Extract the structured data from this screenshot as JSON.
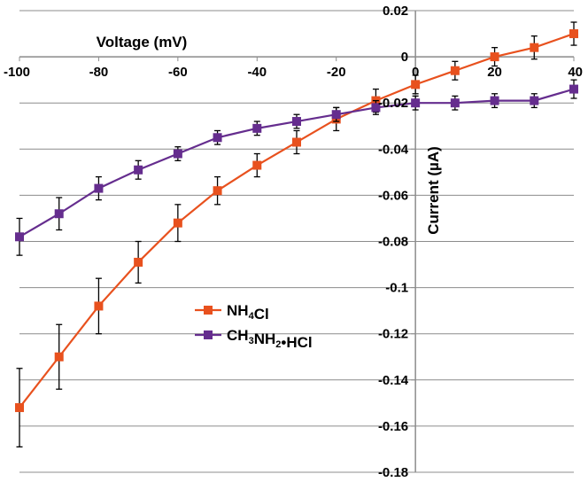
{
  "chart_data": {
    "type": "line",
    "xlabel": "Voltage (mV)",
    "ylabel": "Current (µA)",
    "xlim": [
      -100,
      40
    ],
    "ylim": [
      -0.18,
      0.02
    ],
    "x": [
      -100,
      -90,
      -80,
      -70,
      -60,
      -50,
      -40,
      -30,
      -20,
      -10,
      0,
      10,
      20,
      30,
      40
    ],
    "x_tick_labels": [
      "-100",
      "-80",
      "-60",
      "-40",
      "-20",
      "0",
      "20",
      "40"
    ],
    "x_tick_values": [
      -100,
      -80,
      -60,
      -40,
      -20,
      0,
      20,
      40
    ],
    "y_tick_labels": [
      "0.02",
      "0",
      "-0.02",
      "-0.04",
      "-0.06",
      "-0.08",
      "-0.1",
      "-0.12",
      "-0.14",
      "-0.16",
      "-0.18"
    ],
    "y_tick_values": [
      0.02,
      0,
      -0.02,
      -0.04,
      -0.06,
      -0.08,
      -0.1,
      -0.12,
      -0.14,
      -0.16,
      -0.18
    ],
    "grid": true,
    "legend_position": "center-left",
    "series": [
      {
        "name_parts": [
          [
            "NH",
            ""
          ],
          [
            "4",
            "sub"
          ],
          [
            "Cl",
            ""
          ]
        ],
        "color": "#e8511e",
        "values": [
          -0.152,
          -0.13,
          -0.108,
          -0.089,
          -0.072,
          -0.058,
          -0.047,
          -0.037,
          -0.027,
          -0.019,
          -0.012,
          -0.006,
          0.0,
          0.004,
          0.01
        ],
        "errors": [
          0.017,
          0.014,
          0.012,
          0.009,
          0.008,
          0.006,
          0.005,
          0.005,
          0.005,
          0.005,
          0.004,
          0.004,
          0.004,
          0.005,
          0.005
        ]
      },
      {
        "name_parts": [
          [
            "CH",
            ""
          ],
          [
            "3",
            "sub"
          ],
          [
            "NH",
            ""
          ],
          [
            "2",
            "sub"
          ],
          [
            "•HCl",
            ""
          ]
        ],
        "color": "#652d8e",
        "values": [
          -0.078,
          -0.068,
          -0.057,
          -0.049,
          -0.042,
          -0.035,
          -0.031,
          -0.028,
          -0.025,
          -0.022,
          -0.02,
          -0.02,
          -0.019,
          -0.019,
          -0.014
        ],
        "errors": [
          0.008,
          0.007,
          0.005,
          0.004,
          0.003,
          0.003,
          0.003,
          0.003,
          0.003,
          0.003,
          0.003,
          0.003,
          0.003,
          0.003,
          0.004
        ]
      }
    ]
  }
}
